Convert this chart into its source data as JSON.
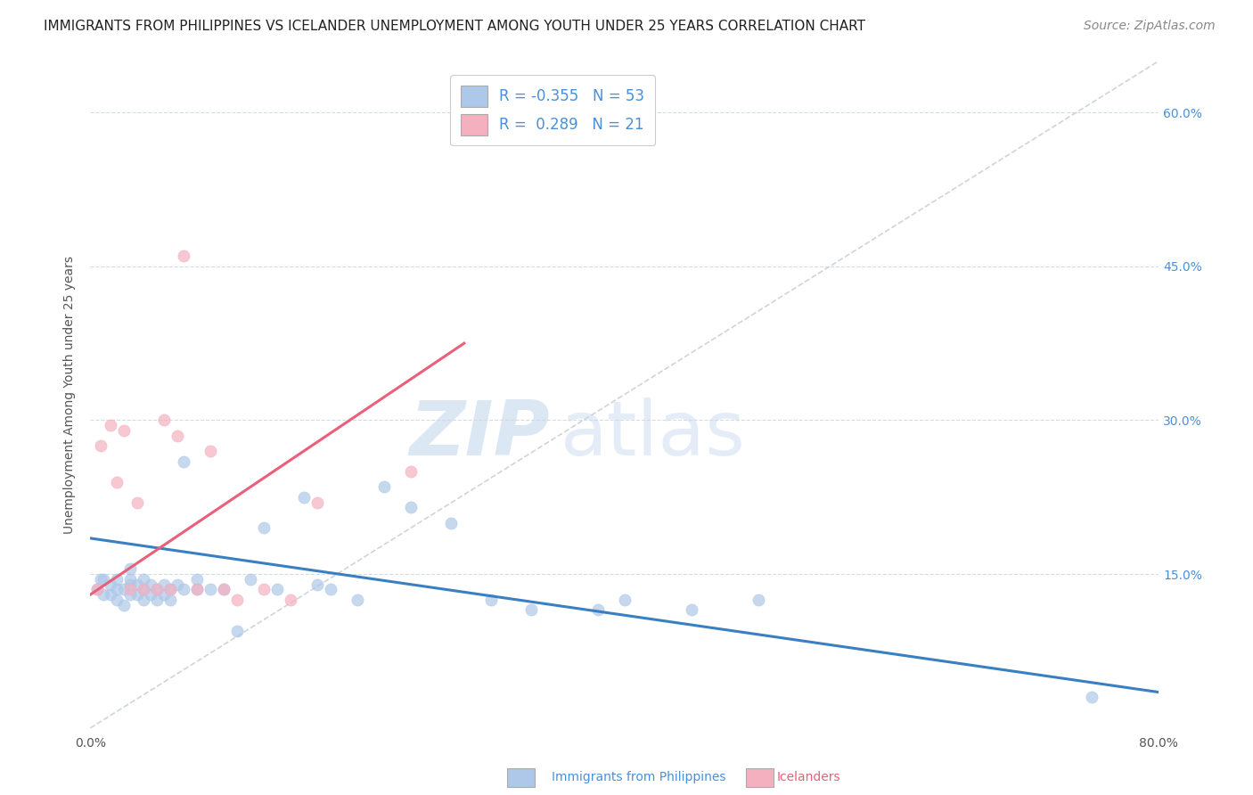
{
  "title": "IMMIGRANTS FROM PHILIPPINES VS ICELANDER UNEMPLOYMENT AMONG YOUTH UNDER 25 YEARS CORRELATION CHART",
  "source": "Source: ZipAtlas.com",
  "xlabel_blue": "Immigrants from Philippines",
  "xlabel_pink": "Icelanders",
  "ylabel": "Unemployment Among Youth under 25 years",
  "xlim": [
    0.0,
    0.8
  ],
  "ylim": [
    0.0,
    0.65
  ],
  "right_yticks": [
    0.15,
    0.3,
    0.45,
    0.6
  ],
  "right_ytick_labels": [
    "15.0%",
    "30.0%",
    "45.0%",
    "60.0%"
  ],
  "xticks": [
    0.0,
    0.2,
    0.4,
    0.6,
    0.8
  ],
  "xtick_labels": [
    "0.0%",
    "",
    "",
    "",
    "80.0%"
  ],
  "legend_r_blue": "-0.355",
  "legend_n_blue": "53",
  "legend_r_pink": "0.289",
  "legend_n_pink": "21",
  "blue_scatter_x": [
    0.005,
    0.008,
    0.01,
    0.01,
    0.015,
    0.015,
    0.02,
    0.02,
    0.02,
    0.025,
    0.025,
    0.03,
    0.03,
    0.03,
    0.03,
    0.035,
    0.035,
    0.04,
    0.04,
    0.04,
    0.045,
    0.045,
    0.05,
    0.05,
    0.055,
    0.055,
    0.06,
    0.06,
    0.065,
    0.07,
    0.07,
    0.08,
    0.08,
    0.09,
    0.1,
    0.11,
    0.12,
    0.13,
    0.14,
    0.16,
    0.17,
    0.18,
    0.2,
    0.22,
    0.24,
    0.27,
    0.3,
    0.33,
    0.38,
    0.4,
    0.45,
    0.5,
    0.75
  ],
  "blue_scatter_y": [
    0.135,
    0.145,
    0.13,
    0.145,
    0.13,
    0.14,
    0.125,
    0.135,
    0.145,
    0.12,
    0.135,
    0.13,
    0.14,
    0.145,
    0.155,
    0.13,
    0.14,
    0.125,
    0.135,
    0.145,
    0.13,
    0.14,
    0.125,
    0.135,
    0.13,
    0.14,
    0.125,
    0.135,
    0.14,
    0.26,
    0.135,
    0.135,
    0.145,
    0.135,
    0.135,
    0.095,
    0.145,
    0.195,
    0.135,
    0.225,
    0.14,
    0.135,
    0.125,
    0.235,
    0.215,
    0.2,
    0.125,
    0.115,
    0.115,
    0.125,
    0.115,
    0.125,
    0.03
  ],
  "pink_scatter_x": [
    0.005,
    0.008,
    0.015,
    0.02,
    0.025,
    0.03,
    0.035,
    0.04,
    0.05,
    0.055,
    0.06,
    0.065,
    0.07,
    0.08,
    0.09,
    0.1,
    0.11,
    0.13,
    0.15,
    0.17,
    0.24
  ],
  "pink_scatter_y": [
    0.135,
    0.275,
    0.295,
    0.24,
    0.29,
    0.135,
    0.22,
    0.135,
    0.135,
    0.3,
    0.135,
    0.285,
    0.46,
    0.135,
    0.27,
    0.135,
    0.125,
    0.135,
    0.125,
    0.22,
    0.25
  ],
  "blue_line_x": [
    0.0,
    0.8
  ],
  "blue_line_y": [
    0.185,
    0.035
  ],
  "pink_line_x": [
    0.0,
    0.28
  ],
  "pink_line_y": [
    0.13,
    0.375
  ],
  "grey_line_x": [
    0.0,
    0.8
  ],
  "grey_line_y": [
    0.0,
    0.65
  ],
  "watermark_zip": "ZIP",
  "watermark_atlas": "atlas",
  "blue_color": "#adc8e8",
  "pink_color": "#f5b0c0",
  "blue_line_color": "#3a7fc1",
  "pink_line_color": "#e8607a",
  "grey_line_color": "#c8d0d8",
  "title_fontsize": 11,
  "axis_label_fontsize": 10,
  "tick_fontsize": 10,
  "legend_fontsize": 12,
  "source_fontsize": 10,
  "background_color": "#ffffff"
}
